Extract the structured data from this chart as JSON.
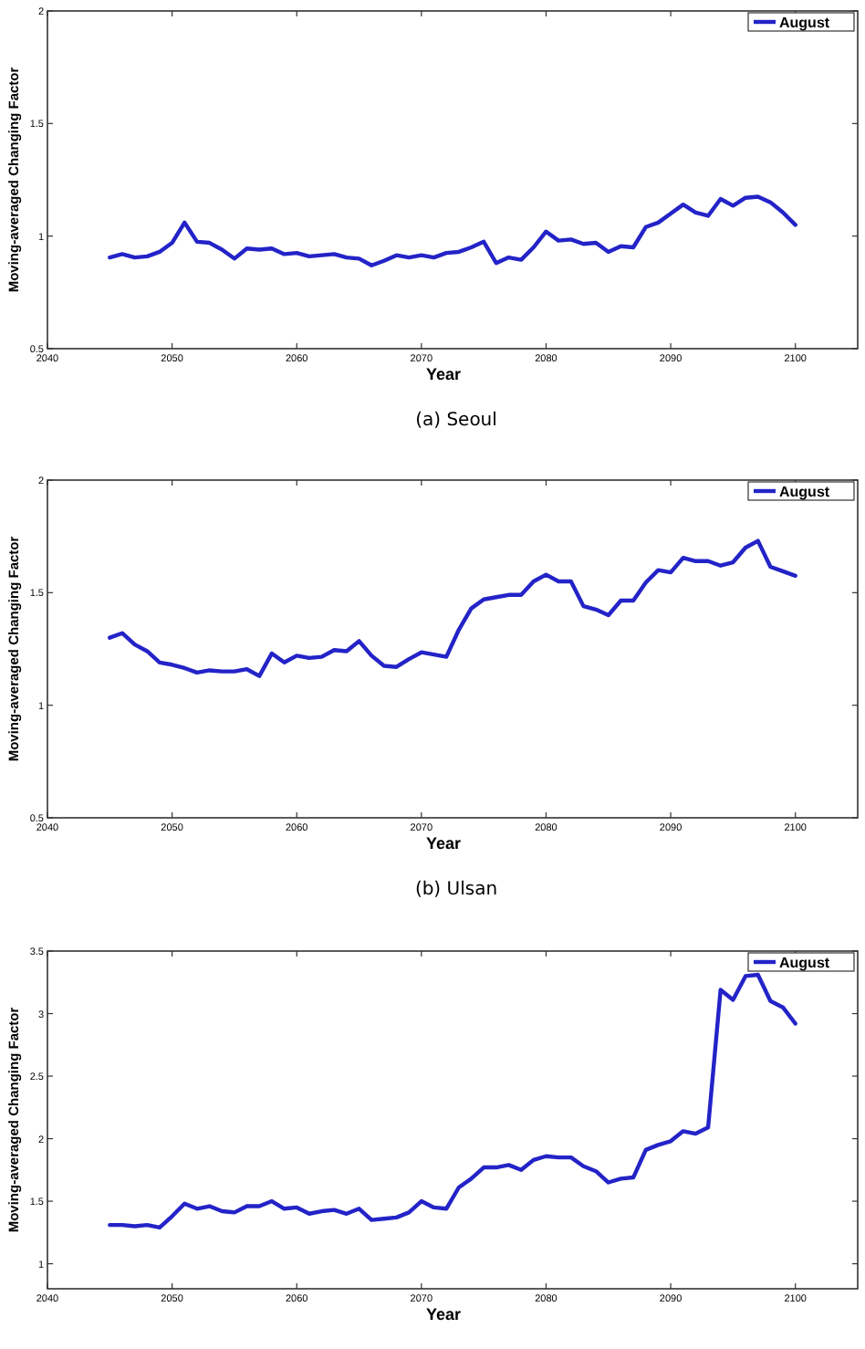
{
  "chart_data": [
    {
      "type": "line",
      "subtitle": "(a) Seoul",
      "xlabel": "Year",
      "ylabel": "Moving-averaged Changing Factor",
      "legend": "top right",
      "grid": false,
      "xlim": [
        2040,
        2105
      ],
      "xticks": [
        2040,
        2050,
        2060,
        2070,
        2080,
        2090,
        2100
      ],
      "ylim": [
        0.5,
        2
      ],
      "yticks": [
        0.5,
        1,
        1.5,
        2
      ],
      "x": [
        2045,
        2046,
        2047,
        2048,
        2049,
        2050,
        2051,
        2052,
        2053,
        2054,
        2055,
        2056,
        2057,
        2058,
        2059,
        2060,
        2061,
        2062,
        2063,
        2064,
        2065,
        2066,
        2067,
        2068,
        2069,
        2070,
        2071,
        2072,
        2073,
        2074,
        2075,
        2076,
        2077,
        2078,
        2079,
        2080,
        2081,
        2082,
        2083,
        2084,
        2085,
        2086,
        2087,
        2088,
        2089,
        2090,
        2091,
        2092,
        2093,
        2094,
        2095,
        2096,
        2097,
        2098,
        2099,
        2100
      ],
      "series": [
        {
          "name": "August",
          "color": "#2323c8",
          "values": [
            0.905,
            0.92,
            0.905,
            0.91,
            0.93,
            0.97,
            1.06,
            0.975,
            0.97,
            0.94,
            0.9,
            0.945,
            0.94,
            0.945,
            0.92,
            0.925,
            0.91,
            0.915,
            0.92,
            0.905,
            0.9,
            0.87,
            0.89,
            0.915,
            0.905,
            0.915,
            0.905,
            0.925,
            0.93,
            0.95,
            0.975,
            0.88,
            0.905,
            0.895,
            0.95,
            1.02,
            0.98,
            0.985,
            0.965,
            0.97,
            0.93,
            0.955,
            0.95,
            1.04,
            1.06,
            1.1,
            1.14,
            1.105,
            1.09,
            1.165,
            1.135,
            1.17,
            1.175,
            1.15,
            1.105,
            1.05
          ]
        }
      ]
    },
    {
      "type": "line",
      "subtitle": "(b) Ulsan",
      "xlabel": "Year",
      "ylabel": "Moving-averaged Changing Factor",
      "legend": "top right",
      "grid": false,
      "xlim": [
        2040,
        2105
      ],
      "xticks": [
        2040,
        2050,
        2060,
        2070,
        2080,
        2090,
        2100
      ],
      "ylim": [
        0.5,
        2
      ],
      "yticks": [
        0.5,
        1,
        1.5,
        2
      ],
      "x": [
        2045,
        2046,
        2047,
        2048,
        2049,
        2050,
        2051,
        2052,
        2053,
        2054,
        2055,
        2056,
        2057,
        2058,
        2059,
        2060,
        2061,
        2062,
        2063,
        2064,
        2065,
        2066,
        2067,
        2068,
        2069,
        2070,
        2071,
        2072,
        2073,
        2074,
        2075,
        2076,
        2077,
        2078,
        2079,
        2080,
        2081,
        2082,
        2083,
        2084,
        2085,
        2086,
        2087,
        2088,
        2089,
        2090,
        2091,
        2092,
        2093,
        2094,
        2095,
        2096,
        2097,
        2098,
        2099,
        2100
      ],
      "series": [
        {
          "name": "August",
          "color": "#2323c8",
          "values": [
            1.3,
            1.32,
            1.27,
            1.24,
            1.19,
            1.18,
            1.165,
            1.145,
            1.155,
            1.15,
            1.15,
            1.16,
            1.13,
            1.23,
            1.19,
            1.22,
            1.21,
            1.215,
            1.245,
            1.24,
            1.285,
            1.22,
            1.175,
            1.17,
            1.205,
            1.235,
            1.225,
            1.215,
            1.335,
            1.43,
            1.47,
            1.48,
            1.49,
            1.49,
            1.55,
            1.58,
            1.55,
            1.55,
            1.44,
            1.425,
            1.4,
            1.465,
            1.465,
            1.545,
            1.6,
            1.59,
            1.655,
            1.64,
            1.64,
            1.62,
            1.635,
            1.7,
            1.73,
            1.615,
            1.595,
            1.575
          ]
        }
      ]
    },
    {
      "type": "line",
      "xlabel": "Year",
      "ylabel": "Moving-averaged Changing Factor",
      "legend": "top right",
      "grid": false,
      "xlim": [
        2040,
        2105
      ],
      "xticks": [
        2040,
        2050,
        2060,
        2070,
        2080,
        2090,
        2100
      ],
      "ylim": [
        0.8,
        3.5
      ],
      "yticks": [
        1,
        1.5,
        2,
        2.5,
        3,
        3.5
      ],
      "x": [
        2045,
        2046,
        2047,
        2048,
        2049,
        2050,
        2051,
        2052,
        2053,
        2054,
        2055,
        2056,
        2057,
        2058,
        2059,
        2060,
        2061,
        2062,
        2063,
        2064,
        2065,
        2066,
        2067,
        2068,
        2069,
        2070,
        2071,
        2072,
        2073,
        2074,
        2075,
        2076,
        2077,
        2078,
        2079,
        2080,
        2081,
        2082,
        2083,
        2084,
        2085,
        2086,
        2087,
        2088,
        2089,
        2090,
        2091,
        2092,
        2093,
        2094,
        2095,
        2096,
        2097,
        2098,
        2099,
        2100
      ],
      "series": [
        {
          "name": "August",
          "color": "#2323c8",
          "values": [
            1.31,
            1.31,
            1.3,
            1.31,
            1.29,
            1.38,
            1.48,
            1.44,
            1.46,
            1.42,
            1.41,
            1.46,
            1.46,
            1.5,
            1.44,
            1.45,
            1.4,
            1.42,
            1.43,
            1.4,
            1.44,
            1.35,
            1.36,
            1.37,
            1.41,
            1.5,
            1.45,
            1.44,
            1.61,
            1.68,
            1.77,
            1.77,
            1.79,
            1.75,
            1.83,
            1.86,
            1.85,
            1.85,
            1.78,
            1.74,
            1.65,
            1.68,
            1.69,
            1.91,
            1.95,
            1.98,
            2.06,
            2.04,
            2.09,
            3.19,
            3.11,
            3.3,
            3.31,
            3.1,
            3.05,
            2.92
          ]
        }
      ]
    }
  ]
}
